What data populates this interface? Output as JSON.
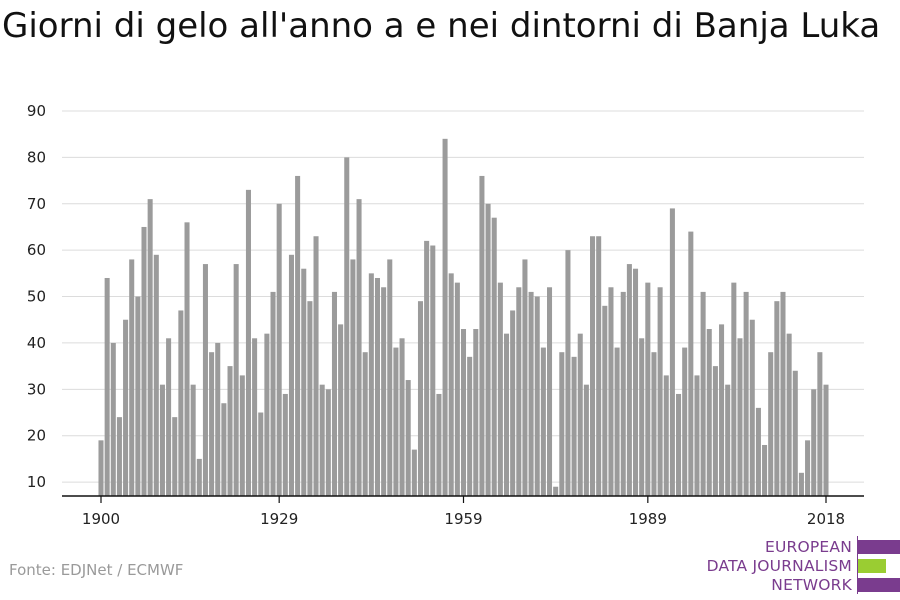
{
  "header": {
    "title": "Giorni di gelo all'anno a e nei dintorni di Banja Luka"
  },
  "footer": {
    "source": "Fonte: EDJNet / ECMWF"
  },
  "logo": {
    "line1": "EUROPEAN",
    "line2": "DATA JOURNALISM",
    "line3": "NETWORK",
    "colors": {
      "purple": "#7a3c8e",
      "green": "#9acd32"
    }
  },
  "chart_data": {
    "type": "bar",
    "title": "Giorni di gelo all'anno a e nei dintorni di Banja Luka",
    "xlabel": "",
    "ylabel": "",
    "x_start": 1900,
    "x_end": 2018,
    "x_ticks": [
      "1900",
      "1929",
      "1959",
      "1989",
      "2018"
    ],
    "y_ticks": [
      "10",
      "20",
      "30",
      "40",
      "50",
      "60",
      "70",
      "80",
      "90"
    ],
    "ylim": [
      7,
      90
    ],
    "grid": true,
    "bar_color": "#9b9b9b",
    "values": [
      19,
      54,
      40,
      24,
      45,
      58,
      50,
      65,
      71,
      59,
      31,
      41,
      24,
      47,
      66,
      31,
      15,
      57,
      38,
      40,
      27,
      35,
      57,
      33,
      73,
      41,
      25,
      42,
      51,
      70,
      29,
      59,
      76,
      56,
      49,
      63,
      31,
      30,
      51,
      44,
      80,
      58,
      71,
      38,
      55,
      54,
      52,
      58,
      39,
      41,
      32,
      17,
      49,
      62,
      61,
      29,
      84,
      55,
      53,
      43,
      37,
      43,
      76,
      70,
      67,
      53,
      42,
      47,
      52,
      58,
      51,
      50,
      39,
      52,
      9,
      38,
      60,
      37,
      42,
      31,
      63,
      63,
      48,
      52,
      39,
      51,
      57,
      56,
      41,
      53,
      38,
      52,
      33,
      69,
      29,
      39,
      64,
      33,
      51,
      43,
      35,
      44,
      31,
      53,
      41,
      51,
      45,
      26,
      18,
      38,
      49,
      51,
      42,
      34,
      12,
      19,
      30,
      38,
      31
    ]
  }
}
